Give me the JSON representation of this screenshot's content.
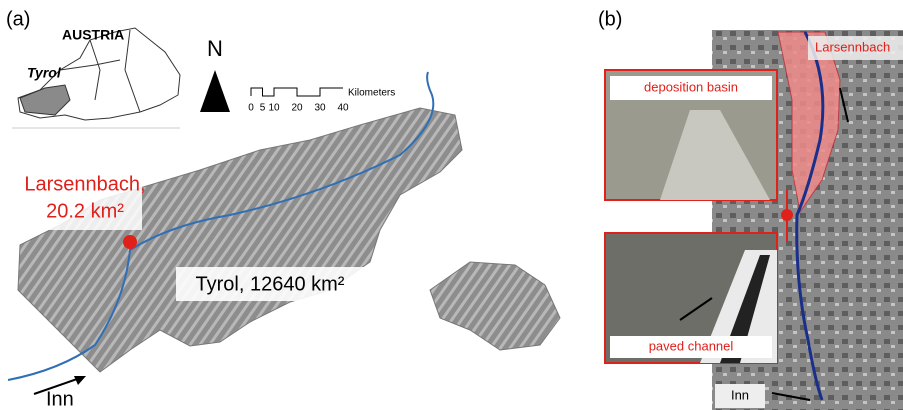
{
  "panel_a": {
    "label": "(a)",
    "inset_title": "AUSTRIA",
    "inset_region": "Tyrol",
    "north": "N",
    "scale_ticks": [
      0,
      5,
      10,
      20,
      30,
      40
    ],
    "scale_unit": "Kilometers",
    "site_label": [
      "Larsennbach,",
      "20.2 km²"
    ],
    "region_label": "Tyrol, 12640 km²",
    "river_label": "Inn"
  },
  "panel_b": {
    "label": "(b)",
    "stream_label": "Larsennbach",
    "photo_top_caption": "deposition basin",
    "photo_bottom_caption": "paved channel",
    "river_label": "Inn"
  }
}
